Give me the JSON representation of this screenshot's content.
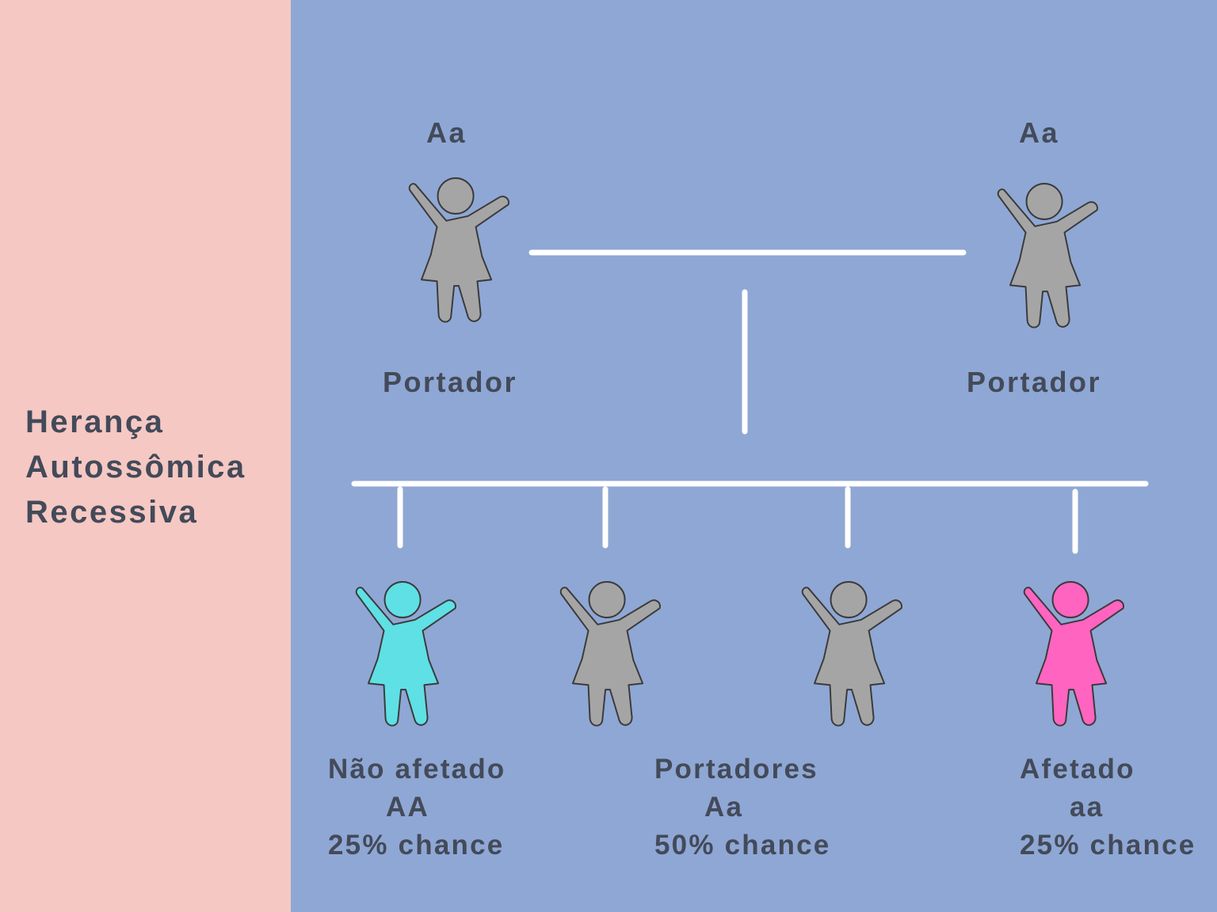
{
  "title": [
    "Herança",
    "Autossômica",
    "Recessiva"
  ],
  "parents": [
    {
      "genotype": "Aa",
      "label": "Portador",
      "icon": "girl-figure-icon",
      "color": "#a5a5a5"
    },
    {
      "genotype": "Aa",
      "label": "Portador",
      "icon": "girl-figure-icon",
      "color": "#a5a5a5"
    }
  ],
  "children": [
    {
      "icon": "girl-figure-icon",
      "color": "#5fe0e4"
    },
    {
      "icon": "girl-figure-icon",
      "color": "#a5a5a5"
    },
    {
      "icon": "girl-figure-icon",
      "color": "#a5a5a5"
    },
    {
      "icon": "girl-figure-icon",
      "color": "#ff64c0"
    }
  ],
  "outcomes": [
    {
      "status": "Não afetado",
      "genotype": "AA",
      "probability": "25% chance"
    },
    {
      "status": "Portadores",
      "genotype": "Aa",
      "probability": "50% chance"
    },
    {
      "status": "Afetado",
      "genotype": "aa",
      "probability": "25% chance"
    }
  ],
  "colors": {
    "left_panel": "#f5c8c3",
    "right_panel": "#8fa7d4",
    "text": "#434a59",
    "lines": "#ffffff"
  }
}
